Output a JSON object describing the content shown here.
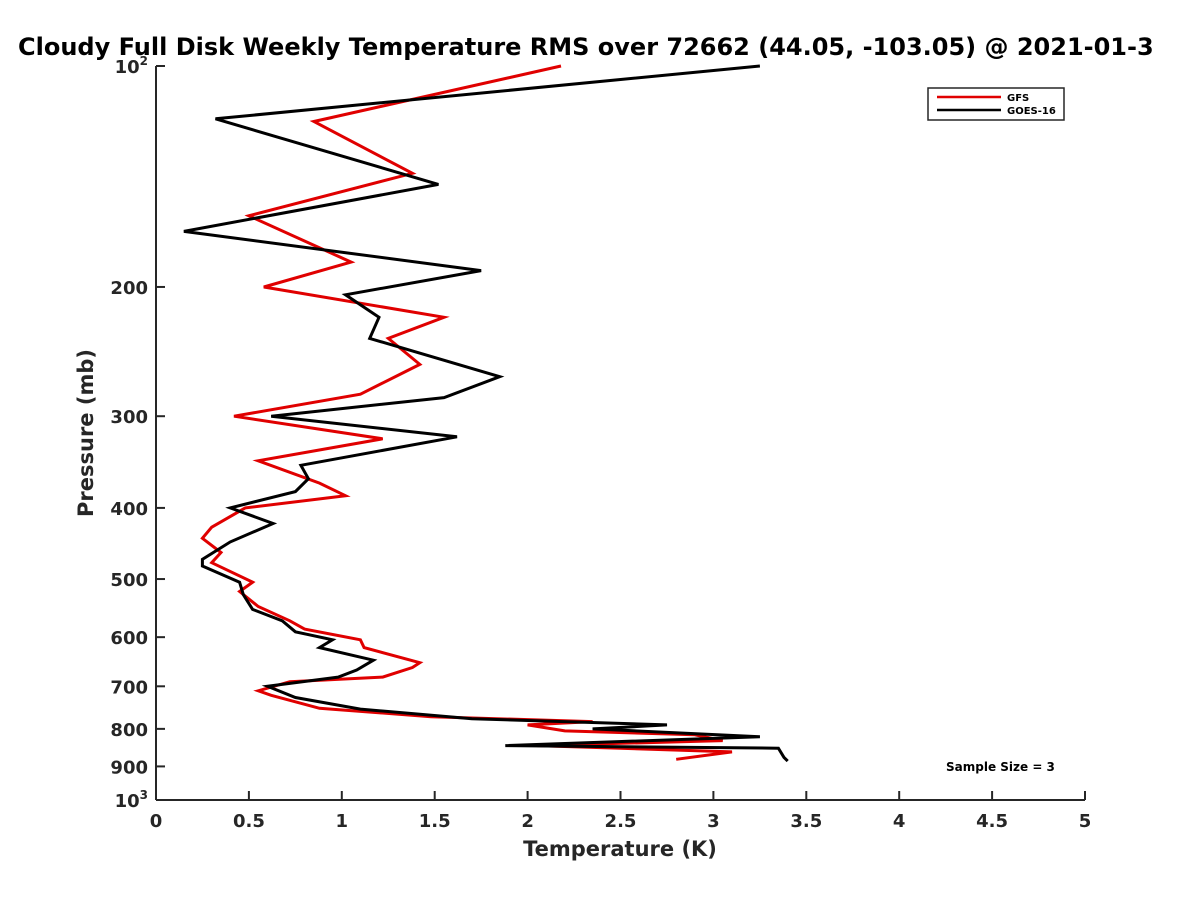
{
  "chart_data": {
    "type": "line",
    "title": "Cloudy Full Disk Weekly Temperature RMS over 72662 (44.05, -103.05) @ 2021-01-3",
    "xlabel": "Temperature (K)",
    "ylabel": "Pressure (mb)",
    "xlim": [
      0,
      5
    ],
    "ylim": [
      100,
      1000
    ],
    "y_scale": "log",
    "y_reversed": true,
    "x_ticks": [
      "0",
      "0.5",
      "1",
      "1.5",
      "2",
      "2.5",
      "3",
      "3.5",
      "4",
      "4.5",
      "5"
    ],
    "y_ticks": [
      {
        "value": 100,
        "base": "10",
        "exp": "2"
      },
      {
        "value": 200,
        "label": "200"
      },
      {
        "value": 300,
        "label": "300"
      },
      {
        "value": 400,
        "label": "400"
      },
      {
        "value": 500,
        "label": "500"
      },
      {
        "value": 600,
        "label": "600"
      },
      {
        "value": 700,
        "label": "700"
      },
      {
        "value": 800,
        "label": "800"
      },
      {
        "value": 900,
        "label": "900"
      },
      {
        "value": 1000,
        "base": "10",
        "exp": "3"
      }
    ],
    "grid": false,
    "legend_position": "top-right",
    "annotation": "Sample Size = 3",
    "series": [
      {
        "name": "GFS",
        "color": "#e00000",
        "points": [
          [
            2.18,
            100
          ],
          [
            0.85,
            119
          ],
          [
            1.38,
            140
          ],
          [
            0.5,
            160
          ],
          [
            1.05,
            185
          ],
          [
            0.58,
            200
          ],
          [
            1.55,
            220
          ],
          [
            1.25,
            235
          ],
          [
            1.42,
            255
          ],
          [
            1.1,
            280
          ],
          [
            0.42,
            300
          ],
          [
            1.22,
            322
          ],
          [
            0.55,
            345
          ],
          [
            0.88,
            370
          ],
          [
            1.02,
            385
          ],
          [
            0.48,
            400
          ],
          [
            0.3,
            425
          ],
          [
            0.25,
            440
          ],
          [
            0.35,
            460
          ],
          [
            0.3,
            475
          ],
          [
            0.52,
            505
          ],
          [
            0.45,
            520
          ],
          [
            0.55,
            545
          ],
          [
            0.72,
            570
          ],
          [
            0.8,
            585
          ],
          [
            1.1,
            605
          ],
          [
            1.12,
            620
          ],
          [
            1.42,
            650
          ],
          [
            1.38,
            660
          ],
          [
            1.22,
            680
          ],
          [
            0.72,
            690
          ],
          [
            0.55,
            710
          ],
          [
            0.62,
            720
          ],
          [
            0.88,
            750
          ],
          [
            1.48,
            770
          ],
          [
            2.35,
            782
          ],
          [
            2.0,
            790
          ],
          [
            2.2,
            805
          ],
          [
            2.9,
            815
          ],
          [
            3.05,
            830
          ],
          [
            2.05,
            843
          ],
          [
            3.1,
            860
          ],
          [
            2.8,
            880
          ]
        ]
      },
      {
        "name": "GOES-16",
        "color": "#000000",
        "points": [
          [
            3.25,
            100
          ],
          [
            0.32,
            118
          ],
          [
            1.52,
            145
          ],
          [
            0.15,
            168
          ],
          [
            1.75,
            190
          ],
          [
            1.02,
            205
          ],
          [
            1.2,
            220
          ],
          [
            1.15,
            235
          ],
          [
            1.85,
            265
          ],
          [
            1.55,
            283
          ],
          [
            0.62,
            300
          ],
          [
            1.62,
            320
          ],
          [
            0.78,
            350
          ],
          [
            0.82,
            365
          ],
          [
            0.75,
            380
          ],
          [
            0.4,
            400
          ],
          [
            0.63,
            420
          ],
          [
            0.4,
            445
          ],
          [
            0.25,
            470
          ],
          [
            0.25,
            480
          ],
          [
            0.45,
            505
          ],
          [
            0.47,
            525
          ],
          [
            0.52,
            550
          ],
          [
            0.68,
            570
          ],
          [
            0.75,
            590
          ],
          [
            0.95,
            605
          ],
          [
            0.88,
            620
          ],
          [
            1.17,
            645
          ],
          [
            1.08,
            665
          ],
          [
            0.98,
            680
          ],
          [
            0.6,
            700
          ],
          [
            0.75,
            725
          ],
          [
            1.1,
            752
          ],
          [
            1.7,
            775
          ],
          [
            2.75,
            790
          ],
          [
            2.35,
            800
          ],
          [
            3.25,
            820
          ],
          [
            1.88,
            843
          ],
          [
            3.35,
            850
          ],
          [
            3.38,
            875
          ],
          [
            3.4,
            885
          ]
        ]
      }
    ]
  }
}
